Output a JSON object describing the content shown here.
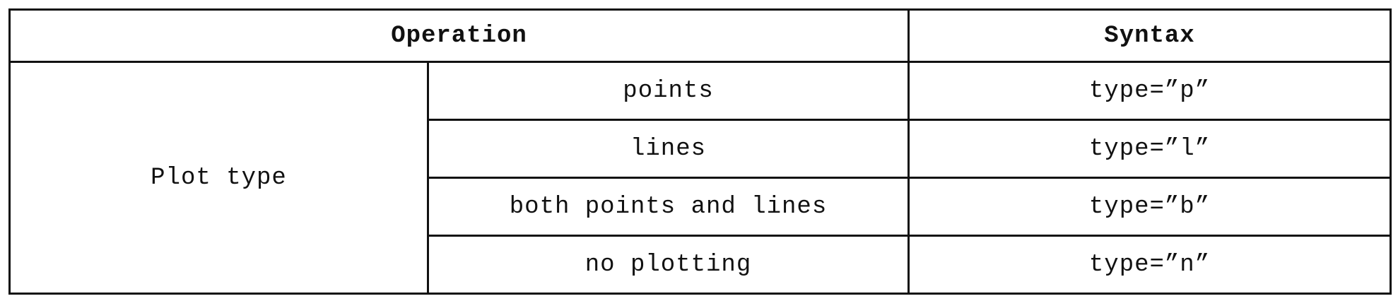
{
  "table": {
    "headers": {
      "operation": "Operation",
      "syntax": "Syntax"
    },
    "group_label": "Plot type",
    "rows": [
      {
        "operation": "points",
        "syntax": "type=”p”"
      },
      {
        "operation": "lines",
        "syntax": "type=”l”"
      },
      {
        "operation": "both points and lines",
        "syntax": "type=”b”"
      },
      {
        "operation": "no plotting",
        "syntax": "type=”n”"
      }
    ]
  }
}
